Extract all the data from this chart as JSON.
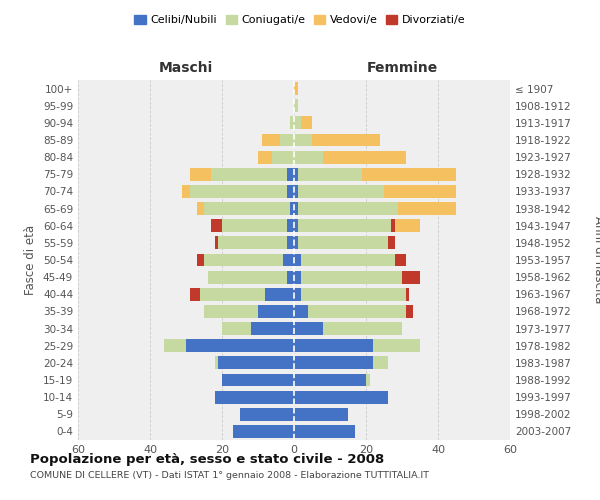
{
  "age_groups": [
    "0-4",
    "5-9",
    "10-14",
    "15-19",
    "20-24",
    "25-29",
    "30-34",
    "35-39",
    "40-44",
    "45-49",
    "50-54",
    "55-59",
    "60-64",
    "65-69",
    "70-74",
    "75-79",
    "80-84",
    "85-89",
    "90-94",
    "95-99",
    "100+"
  ],
  "birth_years": [
    "2003-2007",
    "1998-2002",
    "1993-1997",
    "1988-1992",
    "1983-1987",
    "1978-1982",
    "1973-1977",
    "1968-1972",
    "1963-1967",
    "1958-1962",
    "1953-1957",
    "1948-1952",
    "1943-1947",
    "1938-1942",
    "1933-1937",
    "1928-1932",
    "1923-1927",
    "1918-1922",
    "1913-1917",
    "1908-1912",
    "≤ 1907"
  ],
  "male": {
    "celibi": [
      17,
      15,
      22,
      20,
      21,
      30,
      12,
      10,
      8,
      2,
      3,
      2,
      2,
      1,
      2,
      2,
      0,
      0,
      0,
      0,
      0
    ],
    "coniugati": [
      0,
      0,
      0,
      0,
      1,
      6,
      8,
      15,
      18,
      22,
      22,
      19,
      18,
      24,
      27,
      21,
      6,
      4,
      1,
      0,
      0
    ],
    "vedovi": [
      0,
      0,
      0,
      0,
      0,
      0,
      0,
      0,
      0,
      0,
      0,
      0,
      0,
      2,
      2,
      6,
      4,
      5,
      0,
      0,
      0
    ],
    "divorziati": [
      0,
      0,
      0,
      0,
      0,
      0,
      0,
      0,
      3,
      0,
      2,
      1,
      3,
      0,
      0,
      0,
      0,
      0,
      0,
      0,
      0
    ]
  },
  "female": {
    "nubili": [
      17,
      15,
      26,
      20,
      22,
      22,
      8,
      4,
      2,
      2,
      2,
      1,
      1,
      1,
      1,
      1,
      0,
      0,
      0,
      0,
      0
    ],
    "coniugate": [
      0,
      0,
      0,
      1,
      4,
      13,
      22,
      27,
      29,
      28,
      26,
      25,
      26,
      28,
      24,
      18,
      8,
      5,
      2,
      1,
      0
    ],
    "vedove": [
      0,
      0,
      0,
      0,
      0,
      0,
      0,
      0,
      0,
      0,
      2,
      2,
      8,
      16,
      20,
      26,
      23,
      19,
      3,
      0,
      1
    ],
    "divorziate": [
      0,
      0,
      0,
      0,
      0,
      0,
      0,
      2,
      1,
      5,
      3,
      2,
      1,
      0,
      0,
      0,
      0,
      0,
      0,
      0,
      0
    ]
  },
  "colors": {
    "celibi": "#4472C4",
    "coniugati": "#C5D9A0",
    "vedovi": "#F4C060",
    "divorziati": "#C0392B"
  },
  "xlim": 60,
  "title": "Popolazione per età, sesso e stato civile - 2008",
  "subtitle": "COMUNE DI CELLERE (VT) - Dati ISTAT 1° gennaio 2008 - Elaborazione TUTTITALIA.IT",
  "xlabel_left": "Maschi",
  "xlabel_right": "Femmine",
  "ylabel_left": "Fasce di età",
  "ylabel_right": "Anni di nascita",
  "legend_labels": [
    "Celibi/Nubili",
    "Coniugati/e",
    "Vedovi/e",
    "Divorziati/e"
  ],
  "bg_color": "#FFFFFF",
  "plot_bg": "#EFEFEF",
  "grid_color": "#CCCCCC",
  "bar_height": 0.75
}
